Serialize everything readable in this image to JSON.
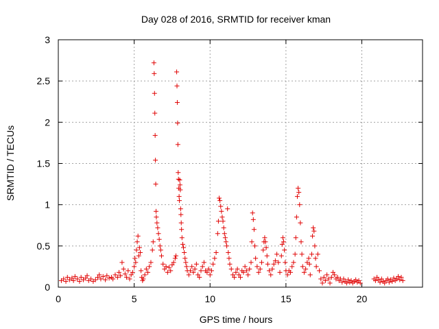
{
  "chart_data": {
    "type": "scatter",
    "title": "Day 028 of 2016, SRMTID for receiver kman",
    "xlabel": "GPS time / hours",
    "ylabel": "SRMTID / TECUs",
    "xlim": [
      0,
      24
    ],
    "ylim": [
      0,
      3
    ],
    "xticks": [
      0,
      5,
      10,
      15,
      20
    ],
    "yticks": [
      0,
      0.5,
      1,
      1.5,
      2,
      2.5,
      3
    ],
    "xtick_labels": [
      "0",
      "5",
      "10",
      "15",
      "20"
    ],
    "ytick_labels": [
      "0",
      "0.5",
      "1",
      "1.5",
      "2",
      "2.5",
      "3"
    ],
    "grid": true,
    "marker": "+",
    "color": "#e00000",
    "series": [
      {
        "name": "SRMTID",
        "points": [
          [
            0.2,
            0.08
          ],
          [
            0.35,
            0.1
          ],
          [
            0.5,
            0.07
          ],
          [
            0.6,
            0.12
          ],
          [
            0.75,
            0.09
          ],
          [
            0.9,
            0.11
          ],
          [
            1.0,
            0.08
          ],
          [
            1.1,
            0.13
          ],
          [
            1.25,
            0.1
          ],
          [
            1.4,
            0.07
          ],
          [
            1.5,
            0.12
          ],
          [
            1.65,
            0.09
          ],
          [
            1.8,
            0.11
          ],
          [
            1.9,
            0.14
          ],
          [
            2.0,
            0.08
          ],
          [
            2.15,
            0.1
          ],
          [
            2.3,
            0.07
          ],
          [
            2.45,
            0.09
          ],
          [
            2.6,
            0.12
          ],
          [
            2.7,
            0.15
          ],
          [
            2.8,
            0.1
          ],
          [
            2.95,
            0.13
          ],
          [
            3.1,
            0.09
          ],
          [
            3.2,
            0.14
          ],
          [
            3.35,
            0.11
          ],
          [
            3.5,
            0.12
          ],
          [
            3.6,
            0.1
          ],
          [
            3.75,
            0.15
          ],
          [
            3.9,
            0.12
          ],
          [
            4.0,
            0.18
          ],
          [
            4.1,
            0.14
          ],
          [
            4.2,
            0.3
          ],
          [
            4.3,
            0.22
          ],
          [
            4.4,
            0.16
          ],
          [
            4.5,
            0.12
          ],
          [
            4.6,
            0.2
          ],
          [
            4.7,
            0.1
          ],
          [
            4.8,
            0.15
          ],
          [
            4.9,
            0.18
          ],
          [
            5.0,
            0.25
          ],
          [
            5.05,
            0.35
          ],
          [
            5.1,
            0.3
          ],
          [
            5.15,
            0.45
          ],
          [
            5.2,
            0.55
          ],
          [
            5.25,
            0.62
          ],
          [
            5.3,
            0.38
          ],
          [
            5.35,
            0.48
          ],
          [
            5.4,
            0.42
          ],
          [
            5.45,
            0.2
          ],
          [
            5.5,
            0.12
          ],
          [
            5.55,
            0.08
          ],
          [
            5.6,
            0.1
          ],
          [
            5.7,
            0.15
          ],
          [
            5.8,
            0.22
          ],
          [
            5.9,
            0.18
          ],
          [
            6.0,
            0.25
          ],
          [
            6.1,
            0.3
          ],
          [
            6.2,
            0.45
          ],
          [
            6.25,
            0.55
          ],
          [
            6.3,
            2.72
          ],
          [
            6.32,
            2.59
          ],
          [
            6.34,
            2.35
          ],
          [
            6.36,
            2.11
          ],
          [
            6.38,
            1.84
          ],
          [
            6.4,
            1.54
          ],
          [
            6.42,
            1.25
          ],
          [
            6.44,
            0.92
          ],
          [
            6.46,
            0.85
          ],
          [
            6.5,
            0.78
          ],
          [
            6.55,
            0.72
          ],
          [
            6.6,
            0.65
          ],
          [
            6.65,
            0.58
          ],
          [
            6.7,
            0.5
          ],
          [
            6.75,
            0.45
          ],
          [
            6.8,
            0.38
          ],
          [
            6.9,
            0.28
          ],
          [
            7.0,
            0.22
          ],
          [
            7.1,
            0.25
          ],
          [
            7.2,
            0.18
          ],
          [
            7.3,
            0.24
          ],
          [
            7.4,
            0.2
          ],
          [
            7.5,
            0.27
          ],
          [
            7.6,
            0.3
          ],
          [
            7.7,
            0.35
          ],
          [
            7.75,
            0.38
          ],
          [
            7.8,
            2.61
          ],
          [
            7.82,
            2.44
          ],
          [
            7.84,
            2.24
          ],
          [
            7.86,
            1.99
          ],
          [
            7.88,
            1.73
          ],
          [
            7.9,
            1.39
          ],
          [
            7.92,
            1.31
          ],
          [
            7.94,
            1.2
          ],
          [
            7.96,
            1.1
          ],
          [
            7.98,
            1.05
          ],
          [
            8.0,
            1.3
          ],
          [
            8.02,
            1.24
          ],
          [
            8.04,
            1.18
          ],
          [
            8.06,
            0.95
          ],
          [
            8.08,
            0.88
          ],
          [
            8.1,
            0.78
          ],
          [
            8.12,
            0.7
          ],
          [
            8.15,
            0.6
          ],
          [
            8.2,
            0.52
          ],
          [
            8.25,
            0.48
          ],
          [
            8.3,
            0.42
          ],
          [
            8.35,
            0.35
          ],
          [
            8.4,
            0.3
          ],
          [
            8.45,
            0.25
          ],
          [
            8.5,
            0.2
          ],
          [
            8.6,
            0.15
          ],
          [
            8.7,
            0.2
          ],
          [
            8.8,
            0.25
          ],
          [
            8.9,
            0.18
          ],
          [
            9.0,
            0.22
          ],
          [
            9.1,
            0.28
          ],
          [
            9.2,
            0.15
          ],
          [
            9.3,
            0.12
          ],
          [
            9.4,
            0.2
          ],
          [
            9.5,
            0.25
          ],
          [
            9.6,
            0.3
          ],
          [
            9.7,
            0.2
          ],
          [
            9.8,
            0.18
          ],
          [
            9.9,
            0.22
          ],
          [
            10.0,
            0.15
          ],
          [
            10.1,
            0.2
          ],
          [
            10.2,
            0.28
          ],
          [
            10.3,
            0.35
          ],
          [
            10.4,
            0.42
          ],
          [
            10.5,
            0.65
          ],
          [
            10.55,
            0.8
          ],
          [
            10.6,
            1.08
          ],
          [
            10.65,
            1.05
          ],
          [
            10.7,
            0.98
          ],
          [
            10.75,
            0.92
          ],
          [
            10.8,
            0.85
          ],
          [
            10.85,
            0.8
          ],
          [
            10.9,
            0.72
          ],
          [
            10.95,
            0.65
          ],
          [
            11.0,
            0.6
          ],
          [
            11.05,
            0.55
          ],
          [
            11.1,
            0.5
          ],
          [
            11.15,
            0.95
          ],
          [
            11.2,
            0.42
          ],
          [
            11.25,
            0.35
          ],
          [
            11.3,
            0.28
          ],
          [
            11.4,
            0.22
          ],
          [
            11.5,
            0.15
          ],
          [
            11.6,
            0.12
          ],
          [
            11.7,
            0.18
          ],
          [
            11.8,
            0.22
          ],
          [
            11.9,
            0.15
          ],
          [
            12.0,
            0.12
          ],
          [
            12.1,
            0.2
          ],
          [
            12.2,
            0.18
          ],
          [
            12.3,
            0.25
          ],
          [
            12.4,
            0.2
          ],
          [
            12.5,
            0.15
          ],
          [
            12.6,
            0.22
          ],
          [
            12.7,
            0.3
          ],
          [
            12.75,
            0.55
          ],
          [
            12.8,
            0.9
          ],
          [
            12.85,
            0.82
          ],
          [
            12.9,
            0.7
          ],
          [
            12.95,
            0.5
          ],
          [
            13.0,
            0.35
          ],
          [
            13.1,
            0.25
          ],
          [
            13.2,
            0.18
          ],
          [
            13.3,
            0.22
          ],
          [
            13.4,
            0.3
          ],
          [
            13.5,
            0.45
          ],
          [
            13.55,
            0.55
          ],
          [
            13.6,
            0.6
          ],
          [
            13.65,
            0.55
          ],
          [
            13.7,
            0.48
          ],
          [
            13.75,
            0.38
          ],
          [
            13.8,
            0.28
          ],
          [
            13.9,
            0.2
          ],
          [
            14.0,
            0.15
          ],
          [
            14.1,
            0.22
          ],
          [
            14.2,
            0.28
          ],
          [
            14.3,
            0.32
          ],
          [
            14.4,
            0.4
          ],
          [
            14.5,
            0.3
          ],
          [
            14.6,
            0.18
          ],
          [
            14.7,
            0.38
          ],
          [
            14.75,
            0.52
          ],
          [
            14.8,
            0.6
          ],
          [
            14.85,
            0.55
          ],
          [
            14.9,
            0.45
          ],
          [
            14.95,
            0.3
          ],
          [
            15.0,
            0.2
          ],
          [
            15.1,
            0.15
          ],
          [
            15.2,
            0.2
          ],
          [
            15.3,
            0.18
          ],
          [
            15.4,
            0.25
          ],
          [
            15.5,
            0.3
          ],
          [
            15.6,
            0.4
          ],
          [
            15.65,
            0.6
          ],
          [
            15.7,
            0.85
          ],
          [
            15.75,
            1.1
          ],
          [
            15.8,
            1.2
          ],
          [
            15.85,
            1.15
          ],
          [
            15.9,
            1.0
          ],
          [
            15.95,
            0.78
          ],
          [
            16.0,
            0.55
          ],
          [
            16.05,
            0.4
          ],
          [
            16.1,
            0.25
          ],
          [
            16.2,
            0.18
          ],
          [
            16.3,
            0.22
          ],
          [
            16.4,
            0.3
          ],
          [
            16.5,
            0.35
          ],
          [
            16.55,
            0.28
          ],
          [
            16.6,
            0.15
          ],
          [
            16.7,
            0.4
          ],
          [
            16.75,
            0.62
          ],
          [
            16.8,
            0.72
          ],
          [
            16.85,
            0.68
          ],
          [
            16.9,
            0.5
          ],
          [
            16.95,
            0.35
          ],
          [
            17.0,
            0.25
          ],
          [
            17.1,
            0.4
          ],
          [
            17.2,
            0.2
          ],
          [
            17.3,
            0.1
          ],
          [
            17.4,
            0.05
          ],
          [
            17.5,
            0.12
          ],
          [
            17.6,
            0.08
          ],
          [
            17.7,
            0.15
          ],
          [
            17.8,
            0.1
          ],
          [
            17.9,
            0.05
          ],
          [
            18.0,
            0.12
          ],
          [
            18.1,
            0.18
          ],
          [
            18.2,
            0.15
          ],
          [
            18.3,
            0.1
          ],
          [
            18.4,
            0.12
          ],
          [
            18.5,
            0.08
          ],
          [
            18.6,
            0.1
          ],
          [
            18.7,
            0.06
          ],
          [
            18.8,
            0.1
          ],
          [
            18.9,
            0.07
          ],
          [
            19.0,
            0.05
          ],
          [
            19.1,
            0.09
          ],
          [
            19.2,
            0.06
          ],
          [
            19.3,
            0.08
          ],
          [
            19.4,
            0.05
          ],
          [
            19.5,
            0.07
          ],
          [
            19.6,
            0.09
          ],
          [
            19.7,
            0.06
          ],
          [
            19.8,
            0.08
          ],
          [
            19.9,
            0.05
          ],
          [
            20.8,
            0.1
          ],
          [
            20.9,
            0.08
          ],
          [
            21.0,
            0.12
          ],
          [
            21.1,
            0.09
          ],
          [
            21.2,
            0.06
          ],
          [
            21.3,
            0.1
          ],
          [
            21.4,
            0.07
          ],
          [
            21.5,
            0.05
          ],
          [
            21.6,
            0.08
          ],
          [
            21.7,
            0.1
          ],
          [
            21.8,
            0.06
          ],
          [
            21.9,
            0.09
          ],
          [
            22.0,
            0.07
          ],
          [
            22.1,
            0.11
          ],
          [
            22.2,
            0.08
          ],
          [
            22.3,
            0.1
          ],
          [
            22.4,
            0.13
          ],
          [
            22.5,
            0.09
          ],
          [
            22.6,
            0.12
          ],
          [
            22.7,
            0.08
          ]
        ]
      }
    ]
  }
}
